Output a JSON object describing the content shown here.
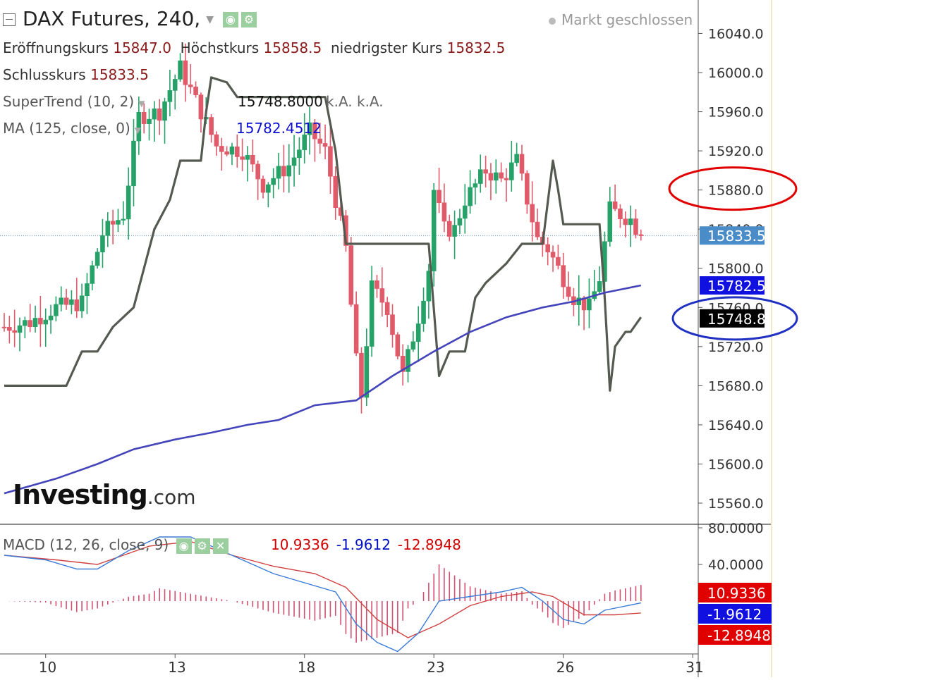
{
  "header": {
    "title": "DAX Futures, 240,",
    "status": "Markt geschlossen",
    "open_label": "Eröffnungskurs",
    "open_value": "15847.0",
    "high_label": "Höchstkurs",
    "high_value": "15858.5",
    "low_label": "niedrigster Kurs",
    "low_value": "15832.5",
    "close_label": "Schlusskurs",
    "close_value": "15833.5"
  },
  "indicators": {
    "supertrend_label": "SuperTrend (10, 2)",
    "supertrend_value": "15748.8000",
    "supertrend_extra": "k.A. k.A.",
    "ma_label": "MA (125, close, 0)",
    "ma_value": "15782.4512",
    "macd_label": "MACD (12, 26, close, 9)",
    "macd_v1": "10.9336",
    "macd_v2": "-1.9612",
    "macd_v3": "-12.8948"
  },
  "logo": {
    "main": "Investing",
    "suffix": ".com"
  },
  "icons": [
    "eye-icon",
    "gear-icon",
    "close-icon"
  ],
  "colors": {
    "up": "#26a269",
    "down": "#e05a6a",
    "supertrend": "#555a50",
    "ma": "#4444bb",
    "macd": "#3a7bd5",
    "signal": "#d04040",
    "annot_red": "#e00000",
    "annot_blue": "#2030c0"
  },
  "chart_data": [
    {
      "type": "candlestick",
      "title": "DAX Futures, 240,",
      "ylim": [
        15530,
        16070
      ],
      "y_ticks": [
        "15560.0",
        "15600.0",
        "15640.0",
        "15680.0",
        "15720.0",
        "15760.0",
        "15800.0",
        "15840.0",
        "15880.0",
        "15920.0",
        "15960.0",
        "16000.0",
        "16040.0"
      ],
      "x_ticks": [
        "10",
        "13",
        "18",
        "23",
        "26",
        "31"
      ],
      "x_tick_bars": [
        8,
        33,
        58,
        83,
        108,
        133
      ],
      "bar_count": 134,
      "last_close": 15833.5,
      "price_labels": [
        {
          "text": "15833.5",
          "value": 15833.5,
          "color": "#4a8cc8"
        },
        {
          "text": "15782.5",
          "value": 15782.5,
          "color": "#1010e0"
        },
        {
          "text": "15748.8",
          "value": 15748.8,
          "color": "#000000"
        }
      ],
      "annotations": [
        {
          "shape": "ellipse",
          "color": "red",
          "value": 15880
        },
        {
          "shape": "ellipse",
          "color": "blue",
          "value": 15748.8
        }
      ],
      "price_knots": [
        [
          0,
          15740
        ],
        [
          5,
          15745
        ],
        [
          10,
          15760
        ],
        [
          15,
          15765
        ],
        [
          19,
          15835
        ],
        [
          23,
          15855
        ],
        [
          26,
          15955
        ],
        [
          30,
          15960
        ],
        [
          34,
          16005
        ],
        [
          38,
          15960
        ],
        [
          41,
          15925
        ],
        [
          46,
          15920
        ],
        [
          50,
          15885
        ],
        [
          55,
          15905
        ],
        [
          59,
          15940
        ],
        [
          62,
          15920
        ],
        [
          64,
          15870
        ],
        [
          66,
          15820
        ],
        [
          68,
          15705
        ],
        [
          69,
          15670
        ],
        [
          71,
          15780
        ],
        [
          74,
          15760
        ],
        [
          77,
          15690
        ],
        [
          80,
          15750
        ],
        [
          82,
          15800
        ],
        [
          83,
          15880
        ],
        [
          85,
          15840
        ],
        [
          87,
          15840
        ],
        [
          89,
          15870
        ],
        [
          91,
          15885
        ],
        [
          93,
          15900
        ],
        [
          96,
          15890
        ],
        [
          99,
          15910
        ],
        [
          101,
          15870
        ],
        [
          103,
          15830
        ],
        [
          105,
          15820
        ],
        [
          107,
          15800
        ],
        [
          108,
          15790
        ],
        [
          110,
          15770
        ],
        [
          113,
          15760
        ],
        [
          115,
          15790
        ],
        [
          117,
          15860
        ],
        [
          119,
          15855
        ],
        [
          121,
          15850
        ],
        [
          123,
          15833.5
        ]
      ],
      "supertrend_knots": [
        [
          0,
          15680
        ],
        [
          12,
          15680
        ],
        [
          15,
          15715
        ],
        [
          18,
          15715
        ],
        [
          21,
          15740
        ],
        [
          25,
          15760
        ],
        [
          29,
          15840
        ],
        [
          32,
          15870
        ],
        [
          34,
          15910
        ],
        [
          38,
          15910
        ],
        [
          39,
          15960
        ],
        [
          40,
          15995
        ],
        [
          43,
          15990
        ],
        [
          45,
          15975
        ],
        [
          58,
          15975
        ],
        [
          60,
          15975
        ],
        [
          62,
          15975
        ],
        [
          64,
          15920
        ],
        [
          66,
          15825
        ],
        [
          82,
          15825
        ],
        [
          84,
          15690
        ],
        [
          86,
          15715
        ],
        [
          89,
          15715
        ],
        [
          91,
          15770
        ],
        [
          93,
          15785
        ],
        [
          95,
          15795
        ],
        [
          97,
          15805
        ],
        [
          100,
          15825
        ],
        [
          104,
          15825
        ],
        [
          106,
          15910
        ],
        [
          107,
          15880
        ],
        [
          108,
          15845
        ],
        [
          115,
          15845
        ],
        [
          116,
          15770
        ],
        [
          117,
          15675
        ],
        [
          118,
          15720
        ],
        [
          120,
          15735
        ],
        [
          121,
          15735
        ],
        [
          123,
          15750
        ]
      ],
      "ma_knots": [
        [
          0,
          15570
        ],
        [
          10,
          15585
        ],
        [
          18,
          15600
        ],
        [
          25,
          15615
        ],
        [
          33,
          15625
        ],
        [
          40,
          15632
        ],
        [
          47,
          15640
        ],
        [
          53,
          15645
        ],
        [
          60,
          15660
        ],
        [
          68,
          15665
        ],
        [
          75,
          15690
        ],
        [
          83,
          15715
        ],
        [
          90,
          15735
        ],
        [
          97,
          15750
        ],
        [
          104,
          15760
        ],
        [
          110,
          15766
        ],
        [
          116,
          15775
        ],
        [
          123,
          15782.5
        ]
      ]
    },
    {
      "type": "macd",
      "title": "MACD (12, 26, close, 9)",
      "ylim": [
        -70,
        90
      ],
      "y_ticks": [
        "40.0000",
        "80.0000"
      ],
      "price_labels": [
        {
          "text": "10.9336",
          "value": 10.9336,
          "color": "#e00000"
        },
        {
          "text": "-1.9612",
          "value": -1.9612,
          "color": "#1010e0"
        },
        {
          "text": "-12.8948",
          "value": -12.8948,
          "color": "#e00000"
        }
      ],
      "macd_knots": [
        [
          0,
          50
        ],
        [
          8,
          45
        ],
        [
          14,
          35
        ],
        [
          18,
          35
        ],
        [
          24,
          55
        ],
        [
          30,
          70
        ],
        [
          36,
          70
        ],
        [
          40,
          60
        ],
        [
          46,
          45
        ],
        [
          52,
          30
        ],
        [
          58,
          20
        ],
        [
          64,
          10
        ],
        [
          68,
          -25
        ],
        [
          72,
          -45
        ],
        [
          76,
          -55
        ],
        [
          80,
          -35
        ],
        [
          84,
          0
        ],
        [
          90,
          5
        ],
        [
          96,
          10
        ],
        [
          100,
          15
        ],
        [
          104,
          0
        ],
        [
          108,
          -20
        ],
        [
          112,
          -25
        ],
        [
          116,
          -10
        ],
        [
          123,
          -2
        ]
      ],
      "signal_knots": [
        [
          0,
          50
        ],
        [
          10,
          45
        ],
        [
          18,
          40
        ],
        [
          28,
          60
        ],
        [
          36,
          65
        ],
        [
          44,
          50
        ],
        [
          52,
          38
        ],
        [
          60,
          30
        ],
        [
          66,
          15
        ],
        [
          72,
          -20
        ],
        [
          78,
          -40
        ],
        [
          84,
          -25
        ],
        [
          90,
          -5
        ],
        [
          96,
          5
        ],
        [
          102,
          10
        ],
        [
          106,
          5
        ],
        [
          112,
          -15
        ],
        [
          118,
          -15
        ],
        [
          123,
          -13
        ]
      ]
    }
  ]
}
